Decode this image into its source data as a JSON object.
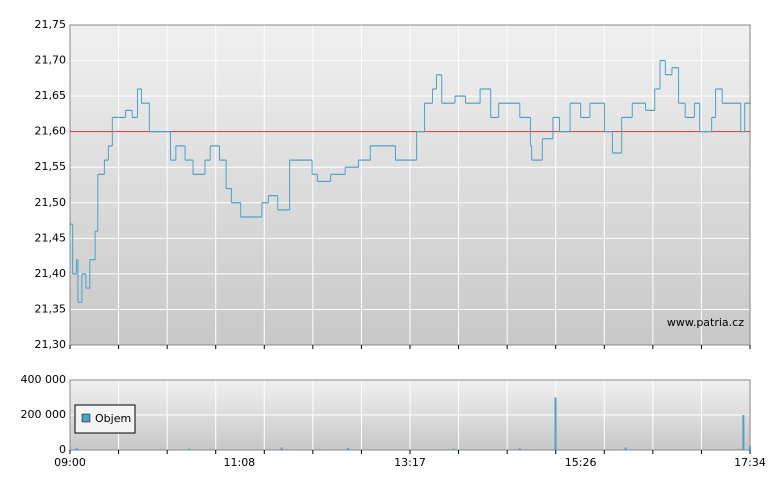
{
  "chart_data": [
    {
      "type": "line",
      "color": "#4aa3c8",
      "reference_line": 21.6,
      "reference_color": "#e03030",
      "watermark": "www.patria.cz",
      "xlim": [
        "09:00",
        "17:34"
      ],
      "ylim": [
        21.3,
        21.75
      ],
      "yticks": [
        {
          "value": 21.3,
          "label": "21,30"
        },
        {
          "value": 21.35,
          "label": "21,35"
        },
        {
          "value": 21.4,
          "label": "21,40"
        },
        {
          "value": 21.45,
          "label": "21,45"
        },
        {
          "value": 21.5,
          "label": "21,50"
        },
        {
          "value": 21.55,
          "label": "21,55"
        },
        {
          "value": 21.6,
          "label": "21,60"
        },
        {
          "value": 21.65,
          "label": "21,65"
        },
        {
          "value": 21.7,
          "label": "21,70"
        },
        {
          "value": 21.75,
          "label": "21,75"
        }
      ],
      "x": [
        "09:00",
        "09:02",
        "09:05",
        "09:06",
        "09:09",
        "09:12",
        "09:15",
        "09:19",
        "09:21",
        "09:26",
        "09:29",
        "09:32",
        "09:36",
        "09:42",
        "09:47",
        "09:51",
        "09:54",
        "10:00",
        "10:12",
        "10:16",
        "10:20",
        "10:27",
        "10:33",
        "10:42",
        "10:46",
        "10:53",
        "10:58",
        "11:02",
        "11:09",
        "11:25",
        "11:30",
        "11:37",
        "11:46",
        "12:03",
        "12:07",
        "12:17",
        "12:28",
        "12:38",
        "12:47",
        "13:06",
        "13:16",
        "13:22",
        "13:28",
        "13:34",
        "13:37",
        "13:41",
        "13:51",
        "13:59",
        "14:10",
        "14:18",
        "14:24",
        "14:40",
        "14:48",
        "14:49",
        "14:57",
        "15:05",
        "15:10",
        "15:18",
        "15:26",
        "15:33",
        "15:44",
        "15:50",
        "15:57",
        "16:05",
        "16:15",
        "16:22",
        "16:26",
        "16:30",
        "16:35",
        "16:40",
        "16:45",
        "16:52",
        "16:56",
        "17:05",
        "17:08",
        "17:13",
        "17:27",
        "17:30",
        "17:34"
      ],
      "values": [
        21.47,
        21.4,
        21.42,
        21.36,
        21.4,
        21.38,
        21.42,
        21.46,
        21.54,
        21.56,
        21.58,
        21.62,
        21.62,
        21.63,
        21.62,
        21.66,
        21.64,
        21.6,
        21.6,
        21.56,
        21.58,
        21.56,
        21.54,
        21.56,
        21.58,
        21.56,
        21.52,
        21.5,
        21.48,
        21.5,
        21.51,
        21.49,
        21.56,
        21.54,
        21.53,
        21.54,
        21.55,
        21.56,
        21.58,
        21.56,
        21.56,
        21.6,
        21.64,
        21.66,
        21.68,
        21.64,
        21.65,
        21.64,
        21.66,
        21.62,
        21.64,
        21.62,
        21.58,
        21.56,
        21.59,
        21.62,
        21.6,
        21.64,
        21.62,
        21.64,
        21.6,
        21.57,
        21.62,
        21.64,
        21.63,
        21.66,
        21.7,
        21.68,
        21.69,
        21.64,
        21.62,
        21.64,
        21.6,
        21.62,
        21.66,
        21.64,
        21.6,
        21.64,
        21.64
      ]
    },
    {
      "type": "bar",
      "xlim": [
        "09:00",
        "17:34"
      ],
      "ylim": [
        0,
        400000
      ],
      "yticks": [
        0,
        {
          "value": 200000,
          "label": "200 000"
        },
        {
          "value": 400000,
          "label": "400 000"
        }
      ],
      "xticks": [
        "09:00",
        "11:08",
        "13:17",
        "15:26",
        "17:34"
      ],
      "series": [
        {
          "name": "Objem",
          "color": "#4aa3c8",
          "x": [
            "09:05",
            "10:30",
            "11:40",
            "12:30",
            "13:50",
            "14:40",
            "15:07",
            "16:00",
            "17:29",
            "17:34"
          ],
          "values": [
            10000,
            8000,
            15000,
            12000,
            8000,
            10000,
            300000,
            15000,
            200000,
            20000
          ]
        }
      ]
    }
  ]
}
